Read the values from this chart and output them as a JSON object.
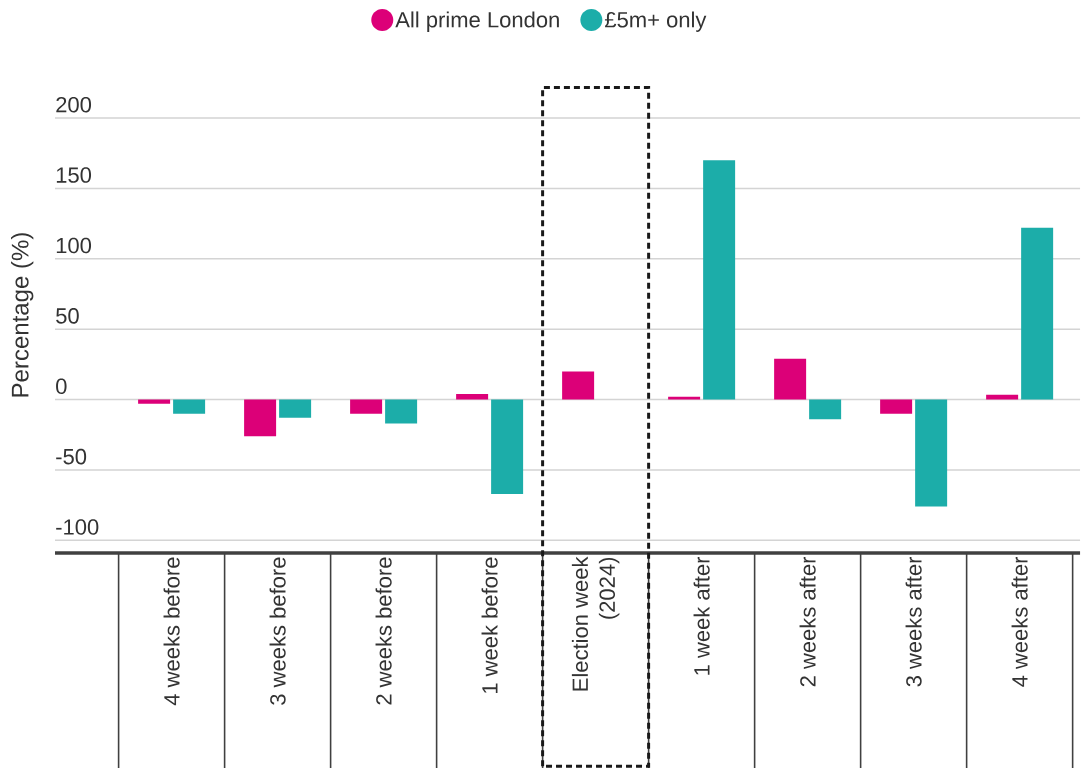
{
  "chart_data": {
    "type": "bar",
    "ylabel": "Percentage (%)",
    "categories": [
      "4 weeks before",
      "3 weeks before",
      "2 weeks before",
      "1 week before",
      "Election week (2024)",
      "1 week after",
      "2 weeks after",
      "3 weeks after",
      "4 weeks after"
    ],
    "series": [
      {
        "name": "All prime London",
        "color": "#dc0078",
        "values": [
          -3,
          -26,
          -10,
          4,
          20,
          2,
          29,
          -10,
          3.5
        ]
      },
      {
        "name": "£5m+ only",
        "color": "#1cada9",
        "values": [
          -10,
          -13,
          -17,
          -67,
          null,
          170,
          -14,
          -76,
          122
        ]
      }
    ],
    "ylim": [
      -109,
      200
    ],
    "yticks": [
      -100,
      -50,
      0,
      50,
      100,
      150,
      200
    ],
    "grid": "y",
    "legend": "top"
  }
}
